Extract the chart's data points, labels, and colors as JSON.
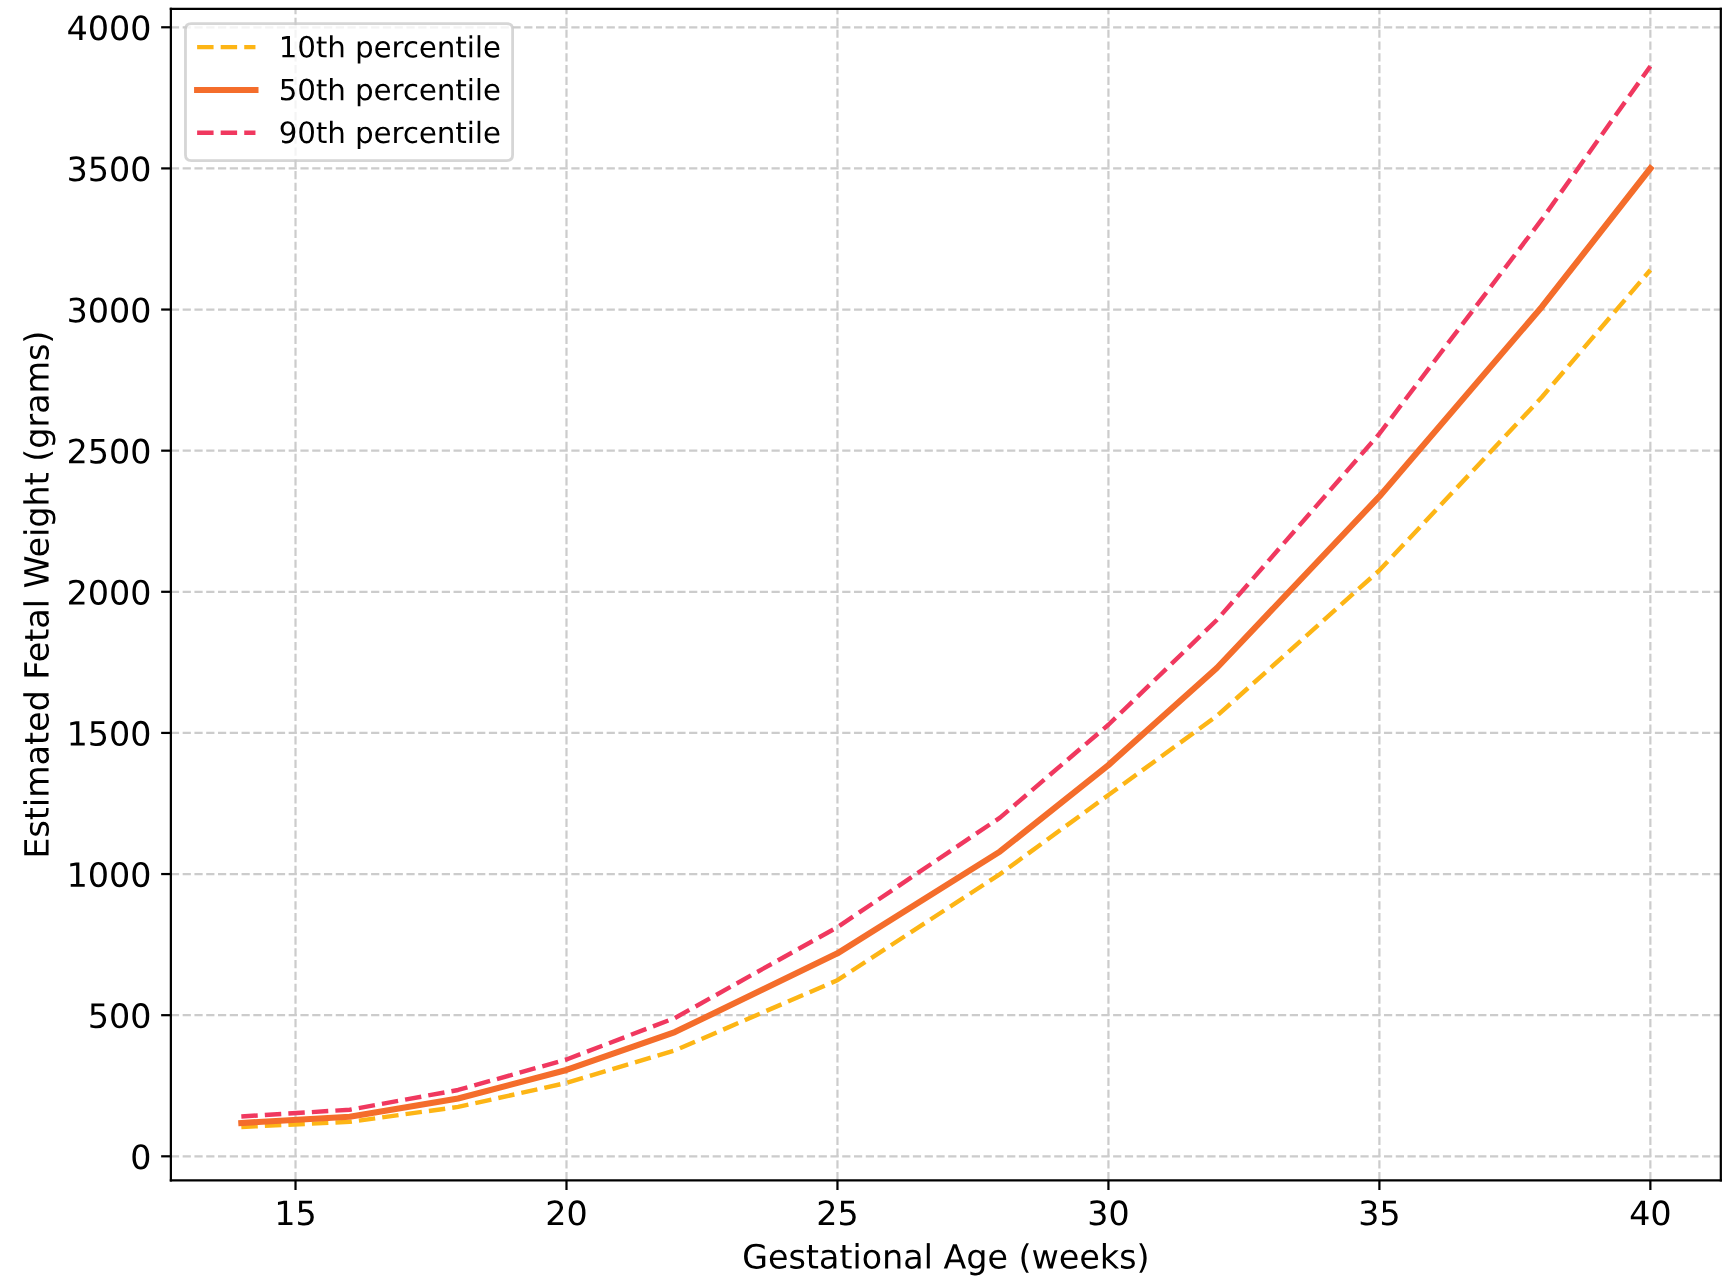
{
  "chart_data": {
    "type": "line",
    "xlabel": "Gestational Age (weeks)",
    "ylabel": "Estimated Fetal Weight (grams)",
    "x": [
      14,
      16,
      18,
      20,
      22,
      25,
      28,
      30,
      32,
      35,
      38,
      40
    ],
    "series": [
      {
        "name": "10th percentile",
        "color": "#fdb515",
        "line_style": "dashed",
        "values": [
          104,
          122,
          175,
          260,
          375,
          624,
          1000,
          1280,
          1560,
          2076,
          2690,
          3140
        ]
      },
      {
        "name": "50th percentile",
        "color": "#f46d2b",
        "line_style": "solid",
        "values": [
          118,
          140,
          205,
          306,
          440,
          719,
          1080,
          1386,
          1730,
          2338,
          3010,
          3500
        ]
      },
      {
        "name": "90th percentile",
        "color": "#f0385f",
        "line_style": "dashed",
        "values": [
          141,
          165,
          235,
          343,
          490,
          812,
          1200,
          1529,
          1900,
          2560,
          3320,
          3862
        ]
      }
    ],
    "xlim": [
      12.7,
      41.3
    ],
    "ylim": [
      -85,
      4065
    ],
    "xticks": [
      15,
      20,
      25,
      30,
      35,
      40
    ],
    "yticks": [
      0,
      500,
      1000,
      1500,
      2000,
      2500,
      3000,
      3500,
      4000
    ],
    "grid": true,
    "legend": "top left",
    "marker": "none"
  }
}
